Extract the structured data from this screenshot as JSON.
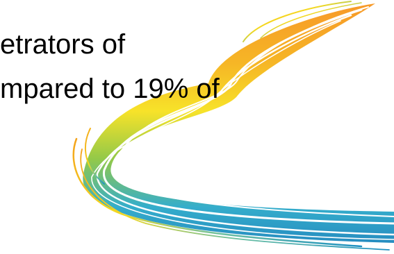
{
  "slide": {
    "text_lines": [
      "etrators of",
      "mpared to 19% of"
    ],
    "decoration": {
      "icon": "road-swoosh-icon",
      "gradient_colors": [
        "#f7941d",
        "#f5b21a",
        "#f7e11e",
        "#8dc63f",
        "#2aa9c9",
        "#1b87bd"
      ]
    }
  }
}
